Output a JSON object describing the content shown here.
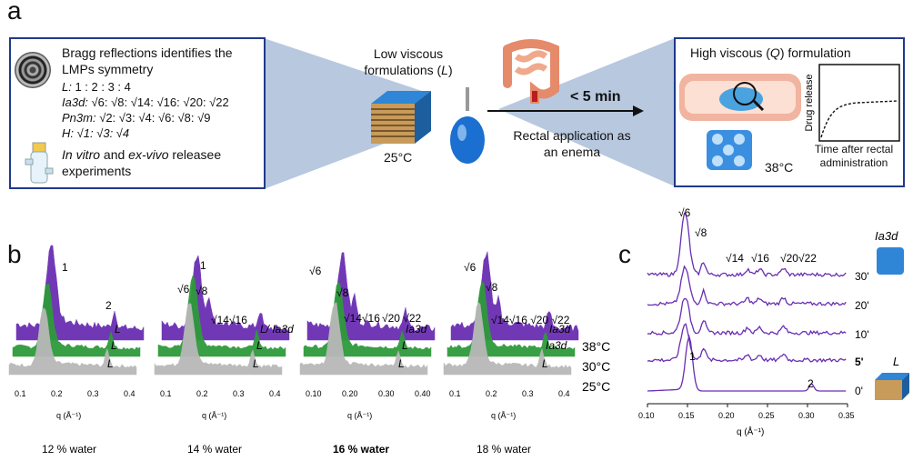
{
  "panel_a": {
    "label": "a",
    "left_box": {
      "line1": "Bragg reflections identifies the",
      "line2": "LMPs symmetry",
      "L_prefix": "L:",
      "L_ratio": " 1 : 2 : 3 : 4",
      "Ia3d_prefix": "Ia3d:",
      "Ia3d_ratio": " √6: √8: √14: √16: √20: √22",
      "Pn3m_prefix": "Pn3m:",
      "Pn3m_ratio": " √2: √3: √4: √6: √8: √9",
      "H_prefix": "H:",
      "H_ratio": " √1: √3: √4",
      "invitro_italic": "In vitro",
      "invitro_and": " and ",
      "exvivo_italic": "ex-vivo",
      "release_text": " releasee",
      "experiments": "experiments"
    },
    "center": {
      "low_viscous_line1": "Low viscous",
      "low_viscous_line2_pre": "formulations (",
      "low_viscous_L": "L",
      "low_viscous_line2_post": ")",
      "temp_left": "25°C",
      "time": "< 5 min",
      "rectal_line1": "Rectal application as",
      "rectal_line2": "an enema"
    },
    "right_box": {
      "title_pre": "High viscous (",
      "title_Q": "Q",
      "title_post": ") formulation",
      "y_axis": "Drug release",
      "x_axis_line1": "Time after rectal",
      "x_axis_line2": "administration",
      "temp_right": "38°C"
    }
  },
  "panel_b": {
    "label": "b",
    "x_axis_label": "q (Å⁻¹)",
    "temps": [
      "38°C",
      "30°C",
      "25°C"
    ],
    "subplots": [
      {
        "caption": "12 % water",
        "ticks": [
          "0.1",
          "0.2",
          "0.3",
          "0.4"
        ],
        "peak_labels": [
          "1",
          "2"
        ],
        "phase_labels": [
          "L",
          "L",
          "L"
        ]
      },
      {
        "caption": "14 % water",
        "ticks": [
          "0.1",
          "0.2",
          "0.3",
          "0.4"
        ],
        "peak_labels": [
          "1",
          "√6",
          "√8",
          "√14√16"
        ],
        "phase_labels": [
          "L/ Ia3d",
          "L",
          "L"
        ]
      },
      {
        "caption": "16 % water",
        "ticks": [
          "0.10",
          "0.20",
          "0.30",
          "0.40"
        ],
        "peak_labels": [
          "√6",
          "√8",
          "√14√16",
          "√20 √22"
        ],
        "phase_labels": [
          "Ia3d",
          "L",
          "L"
        ]
      },
      {
        "caption": "18 % water",
        "ticks": [
          "0.1",
          "0.2",
          "0.3",
          "0.4"
        ],
        "peak_labels": [
          "√6",
          "√8",
          "√14√16 √20 √22"
        ],
        "phase_labels": [
          "Ia3d",
          "Ia3d",
          "L"
        ]
      }
    ]
  },
  "panel_c": {
    "label": "c",
    "peak_labels": [
      "√6",
      "√8",
      "√14",
      "√16",
      "√20",
      "√22",
      "1",
      "2"
    ],
    "times": [
      "30'",
      "20'",
      "10'",
      "5'",
      "0'"
    ],
    "xticks": [
      "0.10",
      "0.15",
      "0.20",
      "0.25",
      "0.30",
      "0.35"
    ],
    "x_axis_label": "q (Å⁻¹)",
    "phase_top": "Ia3d",
    "phase_bottom": "L"
  },
  "colors": {
    "box_border": "#1f3a8a",
    "purple": "#6a2eb3",
    "green": "#2e9a3a",
    "grey": "#b8b8b8",
    "cone": "#b7c8df",
    "cube_blue": "#2f86d6"
  }
}
